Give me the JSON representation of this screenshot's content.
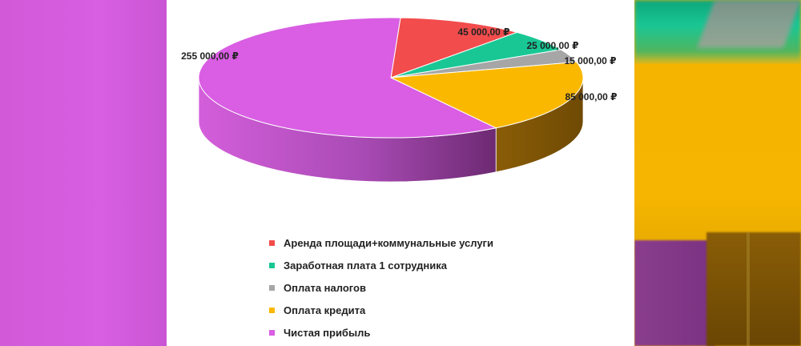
{
  "chart_data": {
    "type": "pie",
    "title": "",
    "currency_suffix": " ₽",
    "legend_position": "bottom",
    "slices": [
      {
        "name": "Аренда площади+коммунальные услуги",
        "value": 45000,
        "label": "45 000,00 ₽",
        "color": "#f24c4c"
      },
      {
        "name": "Заработная плата 1 сотрудника",
        "value": 25000,
        "label": "25 000,00 ₽",
        "color": "#19c795"
      },
      {
        "name": "Оплата налогов",
        "value": 15000,
        "label": "15 000,00 ₽",
        "color": "#a6a6a6"
      },
      {
        "name": "Оплата кредита",
        "value": 85000,
        "label": "85 000,00 ₽",
        "color": "#fbb800"
      },
      {
        "name": "Чистая прибыль",
        "value": 255000,
        "label": "255 000,00 ₽",
        "color": "#d95ee3"
      }
    ]
  },
  "legend": {
    "items": [
      {
        "label": " Аренда площади+коммунальные услуги",
        "color": "#f24c4c"
      },
      {
        "label": "Заработная плата 1 сотрудника",
        "color": "#19c795"
      },
      {
        "label": "Оплата налогов",
        "color": "#a6a6a6"
      },
      {
        "label": "Оплата кредита",
        "color": "#fbb800"
      },
      {
        "label": "Чистая прибыль",
        "color": "#d95ee3"
      }
    ]
  }
}
